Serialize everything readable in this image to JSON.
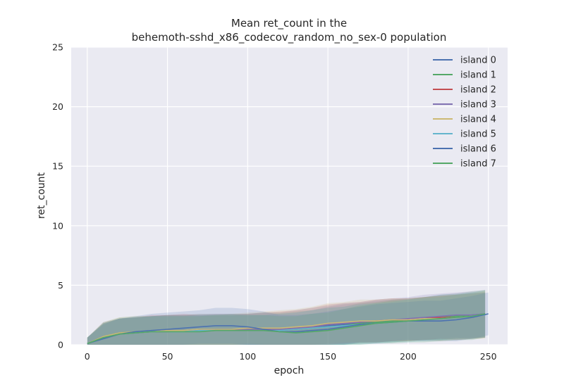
{
  "chart_data": {
    "type": "line",
    "title_line1": "Mean ret_count in the",
    "title_line2": "behemoth-sshd_x86_codecov_random_no_sex-0 population",
    "xlabel": "epoch",
    "ylabel": "ret_count",
    "xlim": [
      -10,
      262
    ],
    "ylim": [
      0,
      25
    ],
    "xticks": [
      0,
      50,
      100,
      150,
      200,
      250
    ],
    "yticks": [
      0,
      5,
      10,
      15,
      20,
      25
    ],
    "grid": true,
    "legend_position": "top-right",
    "background": "#eaeaf2",
    "shaded_band": "mean ± spread per island",
    "series": [
      {
        "name": "island 0",
        "color": "#4c72b0",
        "x": [
          0,
          10,
          20,
          30,
          40,
          50,
          60,
          70,
          80,
          90,
          100,
          110,
          120,
          130,
          140,
          150,
          160,
          170,
          180,
          190,
          200,
          210,
          220,
          230,
          240,
          248
        ],
        "y": [
          0.1,
          0.6,
          0.9,
          1.0,
          1.1,
          1.2,
          1.2,
          1.3,
          1.3,
          1.3,
          1.2,
          1.2,
          1.2,
          1.3,
          1.4,
          1.6,
          1.7,
          1.8,
          1.9,
          2.0,
          2.1,
          2.2,
          2.3,
          2.4,
          2.5,
          2.5
        ],
        "band": [
          0.5,
          1.2,
          1.3,
          1.3,
          1.3,
          1.3,
          1.3,
          1.3,
          1.3,
          1.3,
          1.3,
          1.3,
          1.4,
          1.4,
          1.5,
          1.6,
          1.7,
          1.7,
          1.8,
          1.8,
          1.8,
          1.8,
          1.9,
          1.9,
          1.9,
          1.9
        ]
      },
      {
        "name": "island 1",
        "color": "#55a868",
        "x": [
          0,
          10,
          20,
          30,
          40,
          50,
          60,
          70,
          80,
          90,
          100,
          110,
          120,
          130,
          140,
          150,
          160,
          170,
          180,
          190,
          200,
          210,
          220,
          230,
          240,
          248
        ],
        "y": [
          0.1,
          0.7,
          1.0,
          1.1,
          1.1,
          1.2,
          1.2,
          1.2,
          1.2,
          1.3,
          1.3,
          1.3,
          1.3,
          1.3,
          1.4,
          1.5,
          1.6,
          1.8,
          1.9,
          2.0,
          2.1,
          2.2,
          2.3,
          2.4,
          2.5,
          2.6
        ],
        "band": [
          0.5,
          1.2,
          1.3,
          1.3,
          1.3,
          1.3,
          1.3,
          1.3,
          1.3,
          1.3,
          1.3,
          1.4,
          1.4,
          1.5,
          1.5,
          1.6,
          1.6,
          1.7,
          1.7,
          1.8,
          1.8,
          1.8,
          1.9,
          1.9,
          2.0,
          2.0
        ]
      },
      {
        "name": "island 2",
        "color": "#c44e52",
        "x": [
          0,
          10,
          20,
          30,
          40,
          50,
          60,
          70,
          80,
          90,
          100,
          110,
          120,
          130,
          140,
          150,
          160,
          170,
          180,
          190,
          200,
          210,
          220,
          230,
          240,
          248
        ],
        "y": [
          0.1,
          0.6,
          0.9,
          1.0,
          1.1,
          1.1,
          1.2,
          1.2,
          1.2,
          1.2,
          1.3,
          1.3,
          1.3,
          1.4,
          1.5,
          1.7,
          1.8,
          1.9,
          2.0,
          2.1,
          2.1,
          2.2,
          2.3,
          2.3,
          2.4,
          2.5
        ],
        "band": [
          0.5,
          1.2,
          1.3,
          1.3,
          1.4,
          1.4,
          1.4,
          1.3,
          1.3,
          1.3,
          1.3,
          1.4,
          1.5,
          1.5,
          1.6,
          1.7,
          1.7,
          1.7,
          1.8,
          1.8,
          1.8,
          1.8,
          1.8,
          1.9,
          1.9,
          1.9
        ]
      },
      {
        "name": "island 3",
        "color": "#8172b2",
        "x": [
          0,
          10,
          20,
          30,
          40,
          50,
          60,
          70,
          80,
          90,
          100,
          110,
          120,
          130,
          140,
          150,
          160,
          170,
          180,
          190,
          200,
          210,
          220,
          230,
          240,
          248
        ],
        "y": [
          0.1,
          0.7,
          0.9,
          1.0,
          1.1,
          1.2,
          1.2,
          1.2,
          1.3,
          1.3,
          1.3,
          1.3,
          1.3,
          1.4,
          1.5,
          1.7,
          1.8,
          1.9,
          2.0,
          2.1,
          2.2,
          2.3,
          2.4,
          2.5,
          2.5,
          2.6
        ],
        "band": [
          0.5,
          1.2,
          1.3,
          1.3,
          1.3,
          1.3,
          1.3,
          1.3,
          1.3,
          1.3,
          1.3,
          1.4,
          1.4,
          1.5,
          1.6,
          1.6,
          1.7,
          1.7,
          1.8,
          1.8,
          1.8,
          1.9,
          1.9,
          1.9,
          2.0,
          2.0
        ]
      },
      {
        "name": "island 4",
        "color": "#ccb974",
        "x": [
          0,
          10,
          20,
          30,
          40,
          50,
          60,
          70,
          80,
          90,
          100,
          110,
          120,
          130,
          140,
          150,
          160,
          170,
          180,
          190,
          200,
          210,
          220,
          230,
          240,
          248
        ],
        "y": [
          0.1,
          0.7,
          1.0,
          1.1,
          1.1,
          1.2,
          1.2,
          1.3,
          1.3,
          1.3,
          1.4,
          1.4,
          1.4,
          1.5,
          1.6,
          1.8,
          1.9,
          2.0,
          2.0,
          2.1,
          2.1,
          2.2,
          2.2,
          2.3,
          2.4,
          2.5
        ],
        "band": [
          0.5,
          1.2,
          1.3,
          1.3,
          1.3,
          1.3,
          1.3,
          1.3,
          1.3,
          1.3,
          1.3,
          1.4,
          1.5,
          1.5,
          1.6,
          1.7,
          1.7,
          1.8,
          1.8,
          1.8,
          1.8,
          1.8,
          1.9,
          1.9,
          1.9,
          2.0
        ]
      },
      {
        "name": "island 5",
        "color": "#64b5cd",
        "x": [
          0,
          10,
          20,
          30,
          40,
          50,
          60,
          70,
          80,
          90,
          100,
          110,
          120,
          130,
          140,
          150,
          160,
          170,
          180,
          190,
          200,
          210,
          220,
          230,
          240,
          248
        ],
        "y": [
          0.1,
          0.6,
          0.9,
          1.0,
          1.1,
          1.1,
          1.1,
          1.2,
          1.2,
          1.2,
          1.2,
          1.2,
          1.2,
          1.3,
          1.4,
          1.5,
          1.6,
          1.7,
          1.8,
          1.9,
          2.0,
          2.1,
          2.2,
          2.3,
          2.4,
          2.5
        ],
        "band": [
          0.5,
          1.2,
          1.3,
          1.3,
          1.3,
          1.3,
          1.3,
          1.3,
          1.3,
          1.3,
          1.3,
          1.3,
          1.4,
          1.4,
          1.5,
          1.6,
          1.6,
          1.7,
          1.7,
          1.7,
          1.8,
          1.8,
          1.8,
          1.9,
          1.9,
          1.9
        ]
      },
      {
        "name": "island 6",
        "color": "#4c72b0",
        "x": [
          0,
          10,
          20,
          30,
          40,
          50,
          60,
          70,
          80,
          90,
          100,
          110,
          120,
          130,
          140,
          150,
          160,
          170,
          180,
          190,
          200,
          210,
          220,
          230,
          240,
          250
        ],
        "y": [
          0.1,
          0.5,
          0.9,
          1.1,
          1.2,
          1.3,
          1.4,
          1.5,
          1.6,
          1.6,
          1.5,
          1.3,
          1.1,
          1.1,
          1.2,
          1.3,
          1.5,
          1.7,
          1.8,
          1.9,
          2.0,
          2.0,
          2.0,
          2.1,
          2.3,
          2.6
        ],
        "band": [
          0.5,
          1.2,
          1.3,
          1.3,
          1.4,
          1.4,
          1.4,
          1.4,
          1.5,
          1.5,
          1.5,
          1.5,
          1.4,
          1.4,
          1.4,
          1.5,
          1.5,
          1.5,
          1.6,
          1.6,
          1.6,
          1.7,
          1.7,
          1.8,
          1.8,
          1.8
        ]
      },
      {
        "name": "island 7",
        "color": "#55a868",
        "x": [
          0,
          10,
          20,
          30,
          40,
          50,
          60,
          70,
          80,
          90,
          100,
          110,
          120,
          130,
          140,
          150,
          160,
          170,
          180,
          190,
          200,
          210,
          220,
          230,
          240,
          248
        ],
        "y": [
          0.1,
          0.6,
          0.9,
          1.0,
          1.1,
          1.1,
          1.1,
          1.1,
          1.2,
          1.2,
          1.2,
          1.2,
          1.1,
          1.0,
          1.1,
          1.2,
          1.4,
          1.6,
          1.8,
          1.9,
          2.0,
          2.1,
          2.2,
          2.3,
          2.4,
          2.6
        ],
        "band": [
          0.5,
          1.2,
          1.3,
          1.3,
          1.3,
          1.3,
          1.3,
          1.3,
          1.3,
          1.3,
          1.3,
          1.3,
          1.3,
          1.4,
          1.5,
          1.5,
          1.6,
          1.7,
          1.7,
          1.8,
          1.8,
          1.9,
          1.9,
          1.9,
          2.0,
          2.0
        ]
      }
    ]
  }
}
